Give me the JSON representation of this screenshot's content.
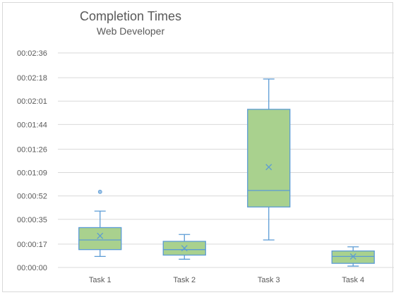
{
  "chart_data": {
    "type": "box",
    "title": "Completion Times",
    "subtitle": "Web Developer",
    "xlabel": "",
    "ylabel": "",
    "y_unit": "seconds",
    "ylim": [
      0,
      156
    ],
    "y_ticks": [
      0,
      17,
      35,
      52,
      69,
      86,
      104,
      121,
      138,
      156
    ],
    "y_tick_labels": [
      "00:00:00",
      "00:00:17",
      "00:00:35",
      "00:00:52",
      "00:01:09",
      "00:01:26",
      "00:01:44",
      "00:02:01",
      "00:02:18",
      "00:02:36"
    ],
    "categories": [
      "Task 1",
      "Task 2",
      "Task 3",
      "Task 4"
    ],
    "boxes": [
      {
        "category": "Task 1",
        "min": 8,
        "q1": 13,
        "median": 20,
        "q3": 29,
        "max": 41,
        "mean": 23,
        "outliers": [
          55
        ]
      },
      {
        "category": "Task 2",
        "min": 6,
        "q1": 9,
        "median": 13,
        "q3": 19,
        "max": 24,
        "mean": 14,
        "outliers": []
      },
      {
        "category": "Task 3",
        "min": 20,
        "q1": 44,
        "median": 56,
        "q3": 115,
        "max": 137,
        "mean": 73,
        "outliers": []
      },
      {
        "category": "Task 4",
        "min": 1,
        "q1": 3,
        "median": 8,
        "q3": 12,
        "max": 15,
        "mean": 8,
        "outliers": []
      }
    ],
    "grid": true,
    "legend": "none",
    "colors": {
      "box_fill": "#a9d18e",
      "box_stroke": "#5b9bd5",
      "grid": "#d9d9d9",
      "text": "#595959"
    }
  }
}
